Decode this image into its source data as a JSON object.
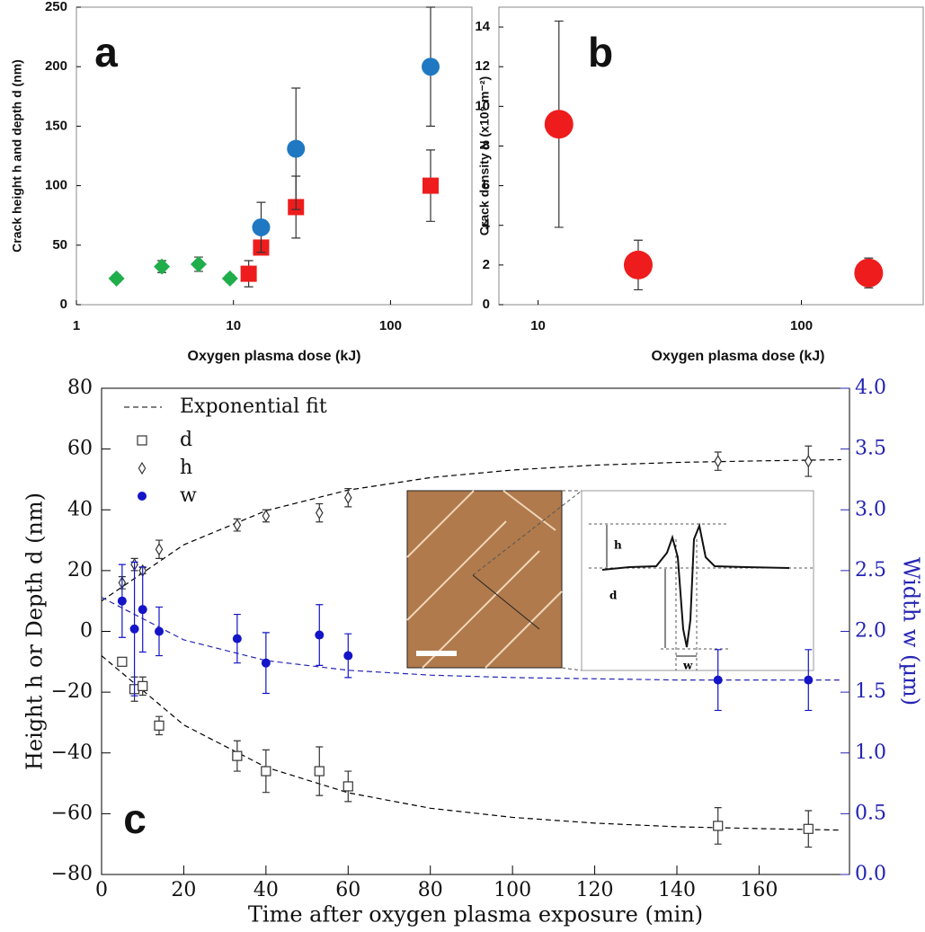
{
  "chart_data": [
    {
      "type": "scatter",
      "panel_label": "a",
      "xlabel": "Oxygen plasma dose (kJ)",
      "ylabel": "Crack height h and depth d (nm)",
      "xscale": "log",
      "xlim": [
        1,
        330
      ],
      "xticks": [
        1,
        10,
        100
      ],
      "ylim": [
        0,
        250
      ],
      "yticks": [
        0,
        50,
        100,
        150,
        200,
        250
      ],
      "error_color": "#333333",
      "series": [
        {
          "marker": "diamond",
          "color": "#1fae4a",
          "x": [
            1.8,
            3.5,
            6,
            9.5
          ],
          "values": [
            22,
            32,
            34,
            22
          ],
          "errors": [
            3,
            5,
            6,
            3
          ]
        },
        {
          "marker": "square",
          "color": "#ee1c1c",
          "x": [
            12.5,
            15,
            25,
            180
          ],
          "values": [
            26,
            48,
            82,
            100
          ],
          "errors": [
            11,
            6,
            26,
            30
          ]
        },
        {
          "marker": "circle",
          "color": "#1f78c1",
          "x": [
            15,
            25,
            180
          ],
          "values": [
            65,
            131,
            200
          ],
          "errors": [
            21,
            51,
            50
          ]
        }
      ]
    },
    {
      "type": "scatter",
      "panel_label": "b",
      "xlabel": "Oxygen plasma dose (kJ)",
      "ylabel": "Crack density N (x10⁹ m⁻²)",
      "xscale": "log",
      "xlim": [
        7.1,
        290
      ],
      "xticks": [
        10,
        100
      ],
      "ylim": [
        0,
        15
      ],
      "yticks": [
        0,
        2,
        4,
        6,
        8,
        10,
        12,
        14
      ],
      "error_color": "#333333",
      "series": [
        {
          "marker": "circle",
          "color": "#ee1c1c",
          "x": [
            12,
            24,
            180
          ],
          "values": [
            9.1,
            2.0,
            1.6
          ],
          "errors": [
            5.2,
            1.25,
            0.75
          ]
        }
      ]
    },
    {
      "type": "scatter",
      "panel_label": "c",
      "xlabel": "Time after oxygen plasma exposure (min)",
      "ylabel": "Height h or Depth d (nm)",
      "y2label": "Width w (µm)",
      "xlim": [
        0,
        182
      ],
      "xticks": [
        0,
        20,
        40,
        60,
        80,
        100,
        120,
        140,
        160
      ],
      "ylim": [
        -80,
        80
      ],
      "yticks": [
        {
          "value": -80,
          "label": "−80"
        },
        {
          "value": -60,
          "label": "−60"
        },
        {
          "value": -40,
          "label": "−40"
        },
        {
          "value": -20,
          "label": "−20"
        },
        0,
        20,
        40,
        60,
        80
      ],
      "y2lim": [
        0,
        4
      ],
      "y2ticks": [
        {
          "value": 0,
          "label": "0.0"
        },
        0.5,
        {
          "value": 1,
          "label": "1.0"
        },
        1.5,
        {
          "value": 2,
          "label": "2.0"
        },
        2.5,
        {
          "value": 3,
          "label": "3.0"
        },
        3.5,
        {
          "value": 4,
          "label": "4.0"
        }
      ],
      "y2_color": "#2424b4",
      "fits": {
        "name": "Exponential fit",
        "x": [
          0,
          20,
          40,
          60,
          80,
          100,
          120,
          140,
          160,
          180
        ],
        "lines": [
          {
            "color": "#000000",
            "values": [
              -8,
              -30.8,
              -44.7,
              -53.1,
              -58.2,
              -61.2,
              -63.1,
              -64.3,
              -64.9,
              -65.4
            ]
          },
          {
            "color": "#000000",
            "values": [
              10,
              28.5,
              39.7,
              46.5,
              50.6,
              53.1,
              54.7,
              55.6,
              56.1,
              56.5
            ]
          },
          {
            "color": "#2424b4",
            "axis": "y2",
            "values": [
              2.28,
              1.93,
              1.76,
              1.68,
              1.64,
              1.62,
              1.61,
              1.6,
              1.6,
              1.6
            ]
          }
        ]
      },
      "series": [
        {
          "name": "d",
          "marker": "open-square",
          "color": "#333333",
          "x": [
            5,
            8,
            10,
            14,
            33,
            40,
            53,
            60,
            150,
            172
          ],
          "values": [
            -10,
            -19,
            -18,
            -31,
            -41,
            -46,
            -46,
            -51,
            -64,
            -65
          ],
          "errors": [
            1,
            4,
            3,
            3,
            5,
            7,
            8,
            5,
            6,
            6
          ]
        },
        {
          "name": "h",
          "marker": "open-diamond",
          "color": "#333333",
          "x": [
            5,
            8,
            10,
            14,
            33,
            40,
            53,
            60,
            150,
            172
          ],
          "values": [
            16,
            22,
            20,
            27,
            35,
            38,
            39,
            44,
            56,
            56
          ],
          "errors": [
            2,
            2,
            1,
            3,
            2,
            2,
            3,
            3,
            3,
            5
          ]
        },
        {
          "name": "w",
          "marker": "dot",
          "axis": "y2",
          "color": "#1414c8",
          "x": [
            5,
            8,
            10,
            14,
            33,
            40,
            53,
            60,
            150,
            172
          ],
          "values": [
            2.25,
            2.02,
            2.18,
            2.0,
            1.94,
            1.74,
            1.97,
            1.8,
            1.6,
            1.6
          ],
          "errors": [
            0.3,
            0.55,
            0.35,
            0.2,
            0.2,
            0.25,
            0.25,
            0.18,
            0.25,
            0.25
          ]
        }
      ],
      "inset": {
        "labels": [
          "h",
          "d",
          "w"
        ]
      }
    }
  ]
}
